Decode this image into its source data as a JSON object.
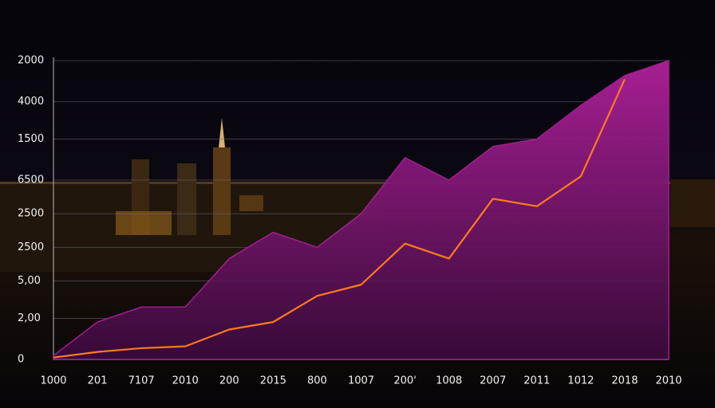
{
  "chart_data": {
    "type": "area",
    "categories": [
      "1000",
      "201",
      "7107",
      "2010",
      "200",
      "2015",
      "800",
      "1007",
      "200'",
      "1008",
      "2007",
      "2011",
      "1012",
      "2018",
      "2010"
    ],
    "series": [
      {
        "color": "#a0208f",
        "fill": true,
        "values": [
          0.1,
          1.0,
          1.4,
          1.4,
          2.7,
          3.4,
          3.0,
          3.9,
          5.4,
          4.8,
          5.7,
          5.9,
          6.8,
          7.6,
          8.0
        ]
      },
      {
        "color": "#ff7a1f",
        "fill": false,
        "values": [
          0.05,
          0.2,
          0.3,
          0.35,
          0.8,
          1.0,
          1.7,
          2.0,
          3.1,
          2.7,
          4.3,
          4.1,
          4.9,
          7.5,
          null
        ]
      }
    ],
    "ylim": [
      0,
      8
    ],
    "yticks": [
      {
        "value": 8,
        "label": "2000"
      },
      {
        "value": 6.9,
        "label": "4000"
      },
      {
        "value": 5.9,
        "label": "1500"
      },
      {
        "value": 4.8,
        "label": "6500"
      },
      {
        "value": 3.9,
        "label": "2500"
      },
      {
        "value": 3,
        "label": "2500"
      },
      {
        "value": 2.1,
        "label": "5,00"
      },
      {
        "value": 1.1,
        "label": "2,00"
      },
      0
    ],
    "grid": true
  }
}
